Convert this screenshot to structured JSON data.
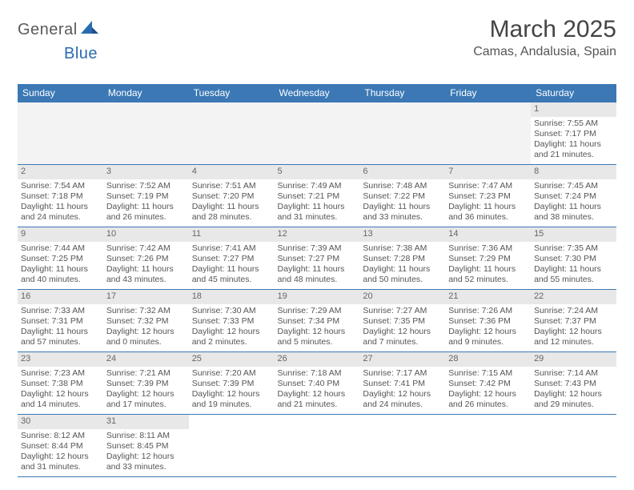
{
  "logo": {
    "text1": "General",
    "text2": "Blue"
  },
  "title": "March 2025",
  "location": "Camas, Andalusia, Spain",
  "colors": {
    "header_bg": "#3b78b5",
    "header_text": "#ffffff",
    "cell_border": "#3b78b5",
    "daynum_bg": "#e8e8e8",
    "body_text": "#555555",
    "logo_gray": "#5a5a5a",
    "logo_blue": "#2a6bb0"
  },
  "day_headers": [
    "Sunday",
    "Monday",
    "Tuesday",
    "Wednesday",
    "Thursday",
    "Friday",
    "Saturday"
  ],
  "weeks": [
    [
      null,
      null,
      null,
      null,
      null,
      null,
      {
        "n": "1",
        "sr": "Sunrise: 7:55 AM",
        "ss": "Sunset: 7:17 PM",
        "dl1": "Daylight: 11 hours",
        "dl2": "and 21 minutes."
      }
    ],
    [
      {
        "n": "2",
        "sr": "Sunrise: 7:54 AM",
        "ss": "Sunset: 7:18 PM",
        "dl1": "Daylight: 11 hours",
        "dl2": "and 24 minutes."
      },
      {
        "n": "3",
        "sr": "Sunrise: 7:52 AM",
        "ss": "Sunset: 7:19 PM",
        "dl1": "Daylight: 11 hours",
        "dl2": "and 26 minutes."
      },
      {
        "n": "4",
        "sr": "Sunrise: 7:51 AM",
        "ss": "Sunset: 7:20 PM",
        "dl1": "Daylight: 11 hours",
        "dl2": "and 28 minutes."
      },
      {
        "n": "5",
        "sr": "Sunrise: 7:49 AM",
        "ss": "Sunset: 7:21 PM",
        "dl1": "Daylight: 11 hours",
        "dl2": "and 31 minutes."
      },
      {
        "n": "6",
        "sr": "Sunrise: 7:48 AM",
        "ss": "Sunset: 7:22 PM",
        "dl1": "Daylight: 11 hours",
        "dl2": "and 33 minutes."
      },
      {
        "n": "7",
        "sr": "Sunrise: 7:47 AM",
        "ss": "Sunset: 7:23 PM",
        "dl1": "Daylight: 11 hours",
        "dl2": "and 36 minutes."
      },
      {
        "n": "8",
        "sr": "Sunrise: 7:45 AM",
        "ss": "Sunset: 7:24 PM",
        "dl1": "Daylight: 11 hours",
        "dl2": "and 38 minutes."
      }
    ],
    [
      {
        "n": "9",
        "sr": "Sunrise: 7:44 AM",
        "ss": "Sunset: 7:25 PM",
        "dl1": "Daylight: 11 hours",
        "dl2": "and 40 minutes."
      },
      {
        "n": "10",
        "sr": "Sunrise: 7:42 AM",
        "ss": "Sunset: 7:26 PM",
        "dl1": "Daylight: 11 hours",
        "dl2": "and 43 minutes."
      },
      {
        "n": "11",
        "sr": "Sunrise: 7:41 AM",
        "ss": "Sunset: 7:27 PM",
        "dl1": "Daylight: 11 hours",
        "dl2": "and 45 minutes."
      },
      {
        "n": "12",
        "sr": "Sunrise: 7:39 AM",
        "ss": "Sunset: 7:27 PM",
        "dl1": "Daylight: 11 hours",
        "dl2": "and 48 minutes."
      },
      {
        "n": "13",
        "sr": "Sunrise: 7:38 AM",
        "ss": "Sunset: 7:28 PM",
        "dl1": "Daylight: 11 hours",
        "dl2": "and 50 minutes."
      },
      {
        "n": "14",
        "sr": "Sunrise: 7:36 AM",
        "ss": "Sunset: 7:29 PM",
        "dl1": "Daylight: 11 hours",
        "dl2": "and 52 minutes."
      },
      {
        "n": "15",
        "sr": "Sunrise: 7:35 AM",
        "ss": "Sunset: 7:30 PM",
        "dl1": "Daylight: 11 hours",
        "dl2": "and 55 minutes."
      }
    ],
    [
      {
        "n": "16",
        "sr": "Sunrise: 7:33 AM",
        "ss": "Sunset: 7:31 PM",
        "dl1": "Daylight: 11 hours",
        "dl2": "and 57 minutes."
      },
      {
        "n": "17",
        "sr": "Sunrise: 7:32 AM",
        "ss": "Sunset: 7:32 PM",
        "dl1": "Daylight: 12 hours",
        "dl2": "and 0 minutes."
      },
      {
        "n": "18",
        "sr": "Sunrise: 7:30 AM",
        "ss": "Sunset: 7:33 PM",
        "dl1": "Daylight: 12 hours",
        "dl2": "and 2 minutes."
      },
      {
        "n": "19",
        "sr": "Sunrise: 7:29 AM",
        "ss": "Sunset: 7:34 PM",
        "dl1": "Daylight: 12 hours",
        "dl2": "and 5 minutes."
      },
      {
        "n": "20",
        "sr": "Sunrise: 7:27 AM",
        "ss": "Sunset: 7:35 PM",
        "dl1": "Daylight: 12 hours",
        "dl2": "and 7 minutes."
      },
      {
        "n": "21",
        "sr": "Sunrise: 7:26 AM",
        "ss": "Sunset: 7:36 PM",
        "dl1": "Daylight: 12 hours",
        "dl2": "and 9 minutes."
      },
      {
        "n": "22",
        "sr": "Sunrise: 7:24 AM",
        "ss": "Sunset: 7:37 PM",
        "dl1": "Daylight: 12 hours",
        "dl2": "and 12 minutes."
      }
    ],
    [
      {
        "n": "23",
        "sr": "Sunrise: 7:23 AM",
        "ss": "Sunset: 7:38 PM",
        "dl1": "Daylight: 12 hours",
        "dl2": "and 14 minutes."
      },
      {
        "n": "24",
        "sr": "Sunrise: 7:21 AM",
        "ss": "Sunset: 7:39 PM",
        "dl1": "Daylight: 12 hours",
        "dl2": "and 17 minutes."
      },
      {
        "n": "25",
        "sr": "Sunrise: 7:20 AM",
        "ss": "Sunset: 7:39 PM",
        "dl1": "Daylight: 12 hours",
        "dl2": "and 19 minutes."
      },
      {
        "n": "26",
        "sr": "Sunrise: 7:18 AM",
        "ss": "Sunset: 7:40 PM",
        "dl1": "Daylight: 12 hours",
        "dl2": "and 21 minutes."
      },
      {
        "n": "27",
        "sr": "Sunrise: 7:17 AM",
        "ss": "Sunset: 7:41 PM",
        "dl1": "Daylight: 12 hours",
        "dl2": "and 24 minutes."
      },
      {
        "n": "28",
        "sr": "Sunrise: 7:15 AM",
        "ss": "Sunset: 7:42 PM",
        "dl1": "Daylight: 12 hours",
        "dl2": "and 26 minutes."
      },
      {
        "n": "29",
        "sr": "Sunrise: 7:14 AM",
        "ss": "Sunset: 7:43 PM",
        "dl1": "Daylight: 12 hours",
        "dl2": "and 29 minutes."
      }
    ],
    [
      {
        "n": "30",
        "sr": "Sunrise: 8:12 AM",
        "ss": "Sunset: 8:44 PM",
        "dl1": "Daylight: 12 hours",
        "dl2": "and 31 minutes."
      },
      {
        "n": "31",
        "sr": "Sunrise: 8:11 AM",
        "ss": "Sunset: 8:45 PM",
        "dl1": "Daylight: 12 hours",
        "dl2": "and 33 minutes."
      },
      null,
      null,
      null,
      null,
      null
    ]
  ]
}
